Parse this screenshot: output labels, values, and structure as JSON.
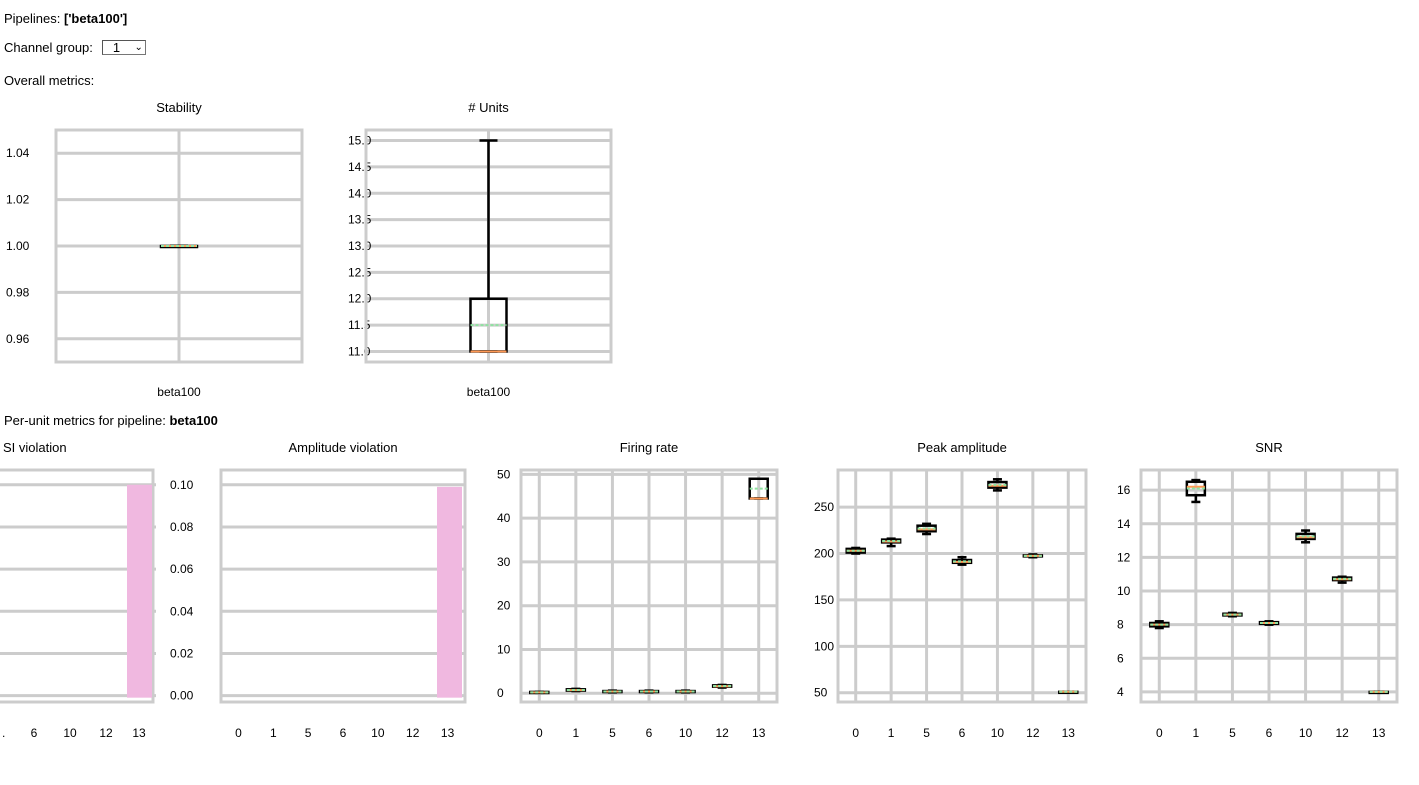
{
  "header": {
    "pipelines_label": "Pipelines:",
    "pipelines_value": "['beta100']",
    "channel_group_label": "Channel group:",
    "channel_group_value": "1",
    "overall_label": "Overall metrics:",
    "perunit_label": "Per-unit metrics for pipeline:",
    "perunit_pipeline": "beta100"
  },
  "colors": {
    "grid": "#cccccc",
    "box": "#000000",
    "median": "#ff9955",
    "mean": "#8fe3a0",
    "bar": "#f0b8e0"
  },
  "chart_data": [
    {
      "type": "box",
      "title": "Stability",
      "categories": [
        "beta100"
      ],
      "yticks": [
        1.04,
        1.02,
        1.0,
        0.98,
        0.96
      ],
      "ylim": [
        0.95,
        1.05
      ],
      "boxes": [
        {
          "min": 1.0,
          "q1": 1.0,
          "median": 1.0,
          "q3": 1.0,
          "max": 1.0
        }
      ],
      "grid": true
    },
    {
      "type": "box",
      "title": "# Units",
      "categories": [
        "beta100"
      ],
      "yticks": [
        15.0,
        14.5,
        14.0,
        13.5,
        13.0,
        12.5,
        12.0,
        11.5,
        11.0
      ],
      "ylim": [
        10.8,
        15.2
      ],
      "boxes": [
        {
          "min": 11.0,
          "q1": 11.0,
          "median": 11.0,
          "q3": 12.0,
          "max": 15.0
        }
      ],
      "grid": true
    },
    {
      "type": "bar",
      "title": "SI violation",
      "categories": [
        "6",
        "10",
        "12",
        "13"
      ],
      "yticks": [],
      "values": [
        0,
        0,
        0,
        0.1
      ],
      "grid": true
    },
    {
      "type": "bar",
      "title": "Amplitude violation",
      "categories": [
        "0",
        "1",
        "5",
        "6",
        "10",
        "12",
        "13"
      ],
      "yticks": [
        0.1,
        0.08,
        0.06,
        0.04,
        0.02,
        0.0
      ],
      "ylim": [
        -0.003,
        0.107
      ],
      "values": [
        0,
        0,
        0,
        0,
        0,
        0,
        0.099
      ],
      "grid": true
    },
    {
      "type": "box",
      "title": "Firing rate",
      "categories": [
        "0",
        "1",
        "5",
        "6",
        "10",
        "12",
        "13"
      ],
      "yticks": [
        50,
        40,
        30,
        20,
        10,
        0
      ],
      "ylim": [
        -2,
        51
      ],
      "boxes": [
        {
          "min": 0.1,
          "q1": 0.1,
          "median": 0.2,
          "q3": 0.3,
          "max": 0.3
        },
        {
          "min": 0.5,
          "q1": 0.6,
          "median": 0.7,
          "q3": 0.9,
          "max": 1.0
        },
        {
          "min": 0.2,
          "q1": 0.3,
          "median": 0.4,
          "q3": 0.5,
          "max": 0.6
        },
        {
          "min": 0.2,
          "q1": 0.3,
          "median": 0.4,
          "q3": 0.5,
          "max": 0.6
        },
        {
          "min": 0.2,
          "q1": 0.3,
          "median": 0.4,
          "q3": 0.5,
          "max": 0.6
        },
        {
          "min": 1.3,
          "q1": 1.5,
          "median": 1.6,
          "q3": 1.8,
          "max": 1.9
        },
        {
          "min": 44.5,
          "q1": 44.5,
          "median": 44.5,
          "q3": 49.0,
          "max": 49.0
        }
      ],
      "grid": true
    },
    {
      "type": "box",
      "title": "Peak amplitude",
      "categories": [
        "0",
        "1",
        "5",
        "6",
        "10",
        "12",
        "13"
      ],
      "yticks": [
        250,
        200,
        150,
        100,
        50
      ],
      "ylim": [
        40,
        290
      ],
      "boxes": [
        {
          "min": 200,
          "q1": 201,
          "median": 203,
          "q3": 205,
          "max": 206
        },
        {
          "min": 208,
          "q1": 212,
          "median": 213,
          "q3": 215,
          "max": 216
        },
        {
          "min": 221,
          "q1": 224,
          "median": 226,
          "q3": 230,
          "max": 232
        },
        {
          "min": 188,
          "q1": 190,
          "median": 191,
          "q3": 193,
          "max": 196
        },
        {
          "min": 268,
          "q1": 271,
          "median": 273,
          "q3": 277,
          "max": 280
        },
        {
          "min": 196,
          "q1": 197,
          "median": 197.5,
          "q3": 198,
          "max": 199
        },
        {
          "min": 51,
          "q1": 51,
          "median": 51,
          "q3": 51,
          "max": 51
        }
      ],
      "grid": true
    },
    {
      "type": "box",
      "title": "SNR",
      "categories": [
        "0",
        "1",
        "5",
        "6",
        "10",
        "12",
        "13"
      ],
      "yticks": [
        16,
        14,
        12,
        10,
        8,
        6,
        4
      ],
      "ylim": [
        3.4,
        17.2
      ],
      "boxes": [
        {
          "min": 7.8,
          "q1": 7.9,
          "median": 8.0,
          "q3": 8.1,
          "max": 8.2
        },
        {
          "min": 15.3,
          "q1": 15.7,
          "median": 16.2,
          "q3": 16.5,
          "max": 16.6
        },
        {
          "min": 8.5,
          "q1": 8.55,
          "median": 8.6,
          "q3": 8.65,
          "max": 8.7
        },
        {
          "min": 8.0,
          "q1": 8.05,
          "median": 8.1,
          "q3": 8.15,
          "max": 8.2
        },
        {
          "min": 12.9,
          "q1": 13.1,
          "median": 13.2,
          "q3": 13.4,
          "max": 13.6
        },
        {
          "min": 10.5,
          "q1": 10.65,
          "median": 10.7,
          "q3": 10.8,
          "max": 10.85
        },
        {
          "min": 4.0,
          "q1": 4.0,
          "median": 4.0,
          "q3": 4.0,
          "max": 4.0
        }
      ],
      "grid": true
    }
  ]
}
